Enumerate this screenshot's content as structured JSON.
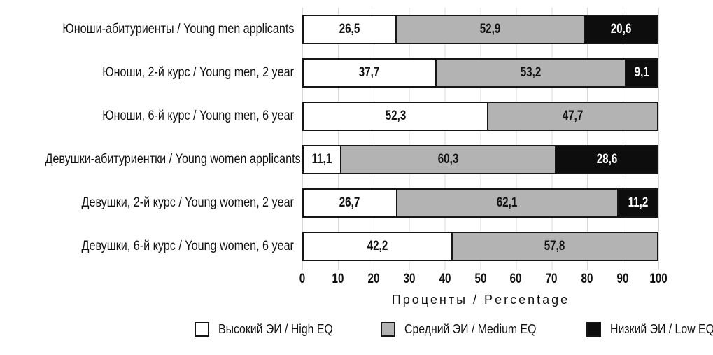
{
  "chart_data": {
    "type": "bar",
    "orientation": "horizontal",
    "stacked": true,
    "title": "",
    "categories": [
      "Юноши-абитуриенты / Young men applicants",
      "Юноши, 2-й курс / Young men, 2 year",
      "Юноши, 6-й курс / Young men, 6 year",
      "Девушки-абитуриентки / Young women applicants",
      "Девушки, 2-й курс / Young women, 2 year",
      "Девушки, 6-й курс / Young women, 6 year"
    ],
    "series": [
      {
        "name": "Высокий ЭИ / High EQ",
        "color": "#ffffff",
        "label_color": "#111111",
        "values": [
          26.5,
          37.7,
          52.3,
          11.1,
          26.7,
          42.2
        ]
      },
      {
        "name": "Средний ЭИ / Medium EQ",
        "color": "#b3b3b3",
        "label_color": "#111111",
        "values": [
          52.9,
          53.2,
          47.7,
          60.3,
          62.1,
          57.8
        ]
      },
      {
        "name": "Низкий ЭИ / Low EQ",
        "color": "#0d0d0d",
        "label_color": "#ffffff",
        "values": [
          20.6,
          9.1,
          0,
          28.6,
          11.2,
          0
        ]
      }
    ],
    "xlabel": "Проценты / Percentage",
    "x_ticks": [
      0,
      10,
      20,
      30,
      40,
      50,
      60,
      70,
      80,
      90,
      100
    ],
    "xlim": [
      0,
      100
    ],
    "decimal_separator": ",",
    "grid": "vertical-gridlines",
    "legend_position": "bottom",
    "bar_border_color": "#161616",
    "gridline_color": "#d9d9d9"
  }
}
